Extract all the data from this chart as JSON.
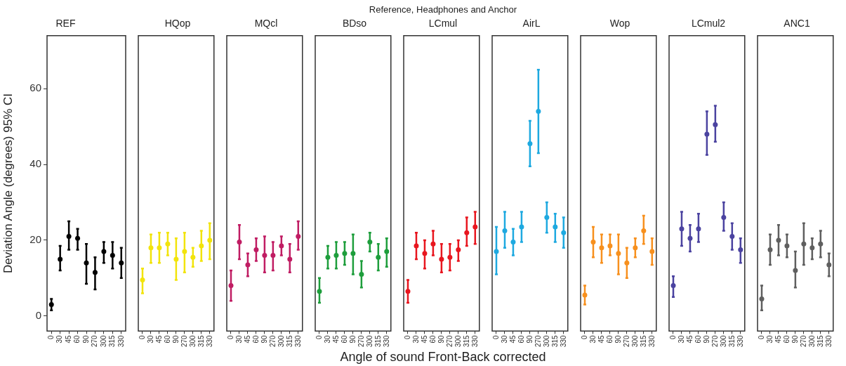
{
  "chart_data": [
    {
      "type": "scatter",
      "title": "REF",
      "ylabel": "Deviation Angle (degrees) 95% CI",
      "categories": [
        "0",
        "30",
        "45",
        "60",
        "90",
        "270",
        "300",
        "315",
        "330"
      ],
      "color": "#000000",
      "marker": "circle",
      "ylim": [
        -4,
        74
      ],
      "yticks": [
        0,
        20,
        40,
        60
      ],
      "values": [
        3,
        15,
        21,
        20.5,
        14,
        11.5,
        17,
        16,
        14
      ],
      "errors": [
        [
          1.5,
          4.5
        ],
        [
          12,
          18.5
        ],
        [
          17.5,
          25
        ],
        [
          17.5,
          23
        ],
        [
          8.5,
          19
        ],
        [
          7,
          15.5
        ],
        [
          14,
          19.5
        ],
        [
          12.5,
          19.5
        ],
        [
          10,
          18
        ]
      ]
    },
    {
      "type": "scatter",
      "title": "HQop",
      "tick_labels": "x",
      "categories": [
        "0",
        "30",
        "45",
        "60",
        "90",
        "270",
        "300",
        "315",
        "330"
      ],
      "color": "#f2e40c",
      "marker": "circle",
      "ylim": [
        -4,
        74
      ],
      "yticks": [
        0,
        20,
        40,
        60
      ],
      "values": [
        9.5,
        18,
        18,
        19,
        15,
        17,
        15.5,
        18.5,
        20
      ],
      "errors": [
        [
          6,
          12.5
        ],
        [
          14,
          21.5
        ],
        [
          14,
          22
        ],
        [
          16,
          22
        ],
        [
          9.5,
          20.5
        ],
        [
          11.5,
          22
        ],
        [
          13,
          18
        ],
        [
          14.5,
          22.5
        ],
        [
          15,
          24.5
        ]
      ]
    },
    {
      "type": "scatter",
      "title": "MQcl",
      "tick_labels": "x",
      "categories": [
        "0",
        "30",
        "45",
        "60",
        "90",
        "270",
        "300",
        "315",
        "330"
      ],
      "color": "#c01d63",
      "marker": "circle",
      "ylim": [
        -4,
        74
      ],
      "yticks": [
        0,
        20,
        40,
        60
      ],
      "values": [
        8,
        19.5,
        13.5,
        17.5,
        16,
        16,
        18.5,
        15,
        21
      ],
      "errors": [
        [
          4,
          12
        ],
        [
          15,
          24
        ],
        [
          10.5,
          16.5
        ],
        [
          14.5,
          20.5
        ],
        [
          11.5,
          21
        ],
        [
          12,
          19.5
        ],
        [
          16,
          21
        ],
        [
          11.5,
          19
        ],
        [
          17.5,
          25
        ]
      ]
    },
    {
      "type": "scatter",
      "title": "BDso",
      "tick_labels": "x",
      "categories": [
        "0",
        "30",
        "45",
        "60",
        "90",
        "270",
        "300",
        "315",
        "330"
      ],
      "color": "#1e9e3c",
      "marker": "circle",
      "ylim": [
        -4,
        74
      ],
      "yticks": [
        0,
        20,
        40,
        60
      ],
      "values": [
        6.5,
        15.5,
        16,
        16.5,
        16.5,
        11,
        19.5,
        15.5,
        17
      ],
      "errors": [
        [
          3.5,
          10
        ],
        [
          12.5,
          18.5
        ],
        [
          12.5,
          19.5
        ],
        [
          13.5,
          19.5
        ],
        [
          11,
          21.5
        ],
        [
          7.5,
          14.5
        ],
        [
          17,
          22
        ],
        [
          12,
          19
        ],
        [
          13,
          20.5
        ]
      ]
    },
    {
      "type": "scatter",
      "title": "LCmul",
      "xlabel": "Angle of sound Front-Back corrected",
      "annotations": [
        "Reference, Headphones and Anchor"
      ],
      "tick_labels": "x",
      "categories": [
        "0",
        "30",
        "45",
        "60",
        "90",
        "270",
        "300",
        "315",
        "330"
      ],
      "color": "#e8161f",
      "marker": "circle",
      "ylim": [
        -4,
        74
      ],
      "yticks": [
        0,
        20,
        40,
        60
      ],
      "values": [
        6.5,
        18.5,
        16.5,
        19,
        15,
        15.5,
        17.5,
        22,
        23.5
      ],
      "errors": [
        [
          3.5,
          9.5
        ],
        [
          15,
          22
        ],
        [
          12.5,
          20
        ],
        [
          16,
          22.5
        ],
        [
          11.5,
          19
        ],
        [
          12,
          19
        ],
        [
          14.5,
          20
        ],
        [
          18.5,
          26
        ],
        [
          19,
          27.5
        ]
      ]
    },
    {
      "type": "scatter",
      "title": "AirL",
      "tick_labels": "x",
      "categories": [
        "0",
        "30",
        "45",
        "60",
        "90",
        "270",
        "300",
        "315",
        "330"
      ],
      "color": "#1ea9e0",
      "marker": "circle",
      "ylim": [
        -4,
        74
      ],
      "yticks": [
        0,
        20,
        40,
        60
      ],
      "values": [
        17,
        22.5,
        19.5,
        23.5,
        45.5,
        54,
        26,
        23.5,
        22
      ],
      "errors": [
        [
          11,
          23.5
        ],
        [
          18,
          27.5
        ],
        [
          16,
          23
        ],
        [
          19.5,
          27.5
        ],
        [
          39.5,
          51.5
        ],
        [
          43,
          65
        ],
        [
          22,
          30
        ],
        [
          19.5,
          27
        ],
        [
          18,
          26
        ]
      ]
    },
    {
      "type": "scatter",
      "title": "Wop",
      "tick_labels": "x",
      "categories": [
        "0",
        "30",
        "45",
        "60",
        "90",
        "270",
        "300",
        "315",
        "330"
      ],
      "color": "#f7901e",
      "marker": "circle",
      "ylim": [
        -4,
        74
      ],
      "yticks": [
        0,
        20,
        40,
        60
      ],
      "values": [
        5.5,
        19.5,
        18,
        18.5,
        16.5,
        14,
        18,
        22.5,
        17
      ],
      "errors": [
        [
          3,
          8
        ],
        [
          15.5,
          23.5
        ],
        [
          14,
          21.5
        ],
        [
          16,
          21.5
        ],
        [
          11,
          21.5
        ],
        [
          10,
          18
        ],
        [
          15.5,
          20.5
        ],
        [
          19,
          26.5
        ],
        [
          13.5,
          20.5
        ]
      ]
    },
    {
      "type": "scatter",
      "title": "LCmul2",
      "tick_labels": "x",
      "categories": [
        "0",
        "30",
        "45",
        "60",
        "90",
        "270",
        "300",
        "315",
        "330"
      ],
      "color": "#4b43a0",
      "marker": "circle",
      "ylim": [
        -4,
        74
      ],
      "yticks": [
        0,
        20,
        40,
        60
      ],
      "values": [
        8,
        23,
        20.5,
        23,
        48,
        50.5,
        26,
        21,
        17.5
      ],
      "errors": [
        [
          5,
          10.5
        ],
        [
          18.5,
          27.5
        ],
        [
          17,
          24
        ],
        [
          19.5,
          27
        ],
        [
          42.5,
          54
        ],
        [
          46,
          55.5
        ],
        [
          22.5,
          30
        ],
        [
          17.5,
          24.5
        ],
        [
          14,
          20.5
        ]
      ]
    },
    {
      "type": "scatter",
      "title": "ANC1",
      "tick_labels": "x",
      "categories": [
        "0",
        "30",
        "45",
        "60",
        "90",
        "270",
        "300",
        "315",
        "330"
      ],
      "color": "#5f5f5f",
      "marker": "circle",
      "ylim": [
        -4,
        74
      ],
      "yticks": [
        0,
        20,
        40,
        60
      ],
      "values": [
        4.5,
        17.5,
        20,
        18.5,
        12,
        19,
        18,
        19,
        13.5
      ],
      "errors": [
        [
          1.5,
          8
        ],
        [
          13.5,
          21.5
        ],
        [
          16,
          24
        ],
        [
          15.5,
          21.5
        ],
        [
          7.5,
          17
        ],
        [
          13.5,
          24.5
        ],
        [
          15,
          20.5
        ],
        [
          15.5,
          22.5
        ],
        [
          10.5,
          16.5
        ]
      ]
    }
  ]
}
